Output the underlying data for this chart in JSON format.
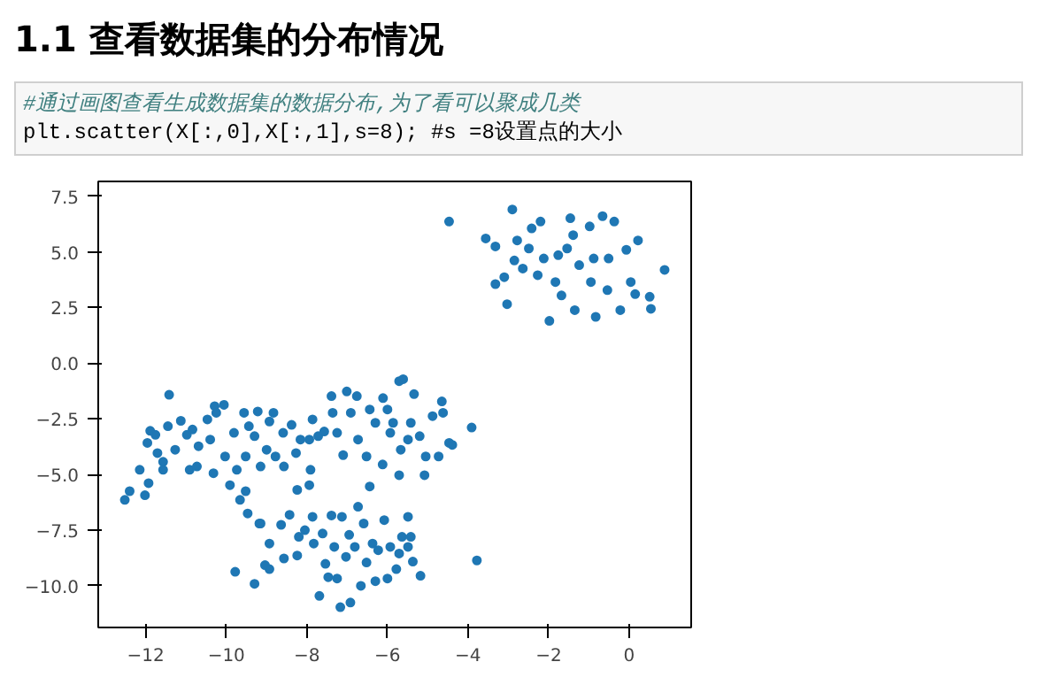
{
  "chart_data": {
    "type": "scatter",
    "title": "1.1  查看数据集的分布情况",
    "annotations": [
      "#通过画图查看生成数据集的数据分布,为了看可以聚成几类",
      "plt.scatter(X[:,0],X[:,1],s=8); #s =8设置点的大小"
    ],
    "x": [
      -4.47,
      -2.9,
      -3.56,
      -3.32,
      -2.78,
      -2.42,
      -2.2,
      -1.46,
      -0.98,
      -0.66,
      -0.37,
      0.22,
      0.88,
      0.51,
      0.54,
      0.15,
      -0.22,
      -0.83,
      -1.35,
      -1.98,
      -3.03,
      -3.32,
      -3.1,
      -2.85,
      -2.49,
      -2.12,
      -1.83,
      -1.68,
      -1.54,
      -1.24,
      -0.88,
      -0.51,
      -0.07,
      0.04,
      -0.54,
      -0.95,
      -2.27,
      -2.64,
      -1.39,
      -1.76,
      -12.52,
      -12.4,
      -12.02,
      -11.93,
      -12.15,
      -11.96,
      -11.89,
      -11.76,
      -11.71,
      -11.57,
      -11.57,
      -11.42,
      -11.45,
      -11.27,
      -11.13,
      -10.98,
      -10.91,
      -10.84,
      -10.69,
      -10.73,
      -10.47,
      -10.4,
      -10.29,
      -10.25,
      -10.06,
      -10.03,
      -10.32,
      -9.91,
      -9.81,
      -9.74,
      -9.66,
      -9.56,
      -9.52,
      -9.52,
      -9.47,
      -9.44,
      -9.3,
      -9.22,
      -9.15,
      -9.18,
      -9.0,
      -8.93,
      -8.83,
      -8.78,
      -8.59,
      -8.57,
      -8.38,
      -8.27,
      -8.24,
      -8.16,
      -7.94,
      -7.91,
      -7.94,
      -7.86,
      -7.72,
      -7.57,
      -7.39,
      -7.01,
      -6.76,
      -7.36,
      -7.25,
      -7.1,
      -6.91,
      -6.73,
      -6.52,
      -6.44,
      -6.44,
      -6.3,
      -6.12,
      -6.11,
      -6.0,
      -5.93,
      -5.86,
      -5.71,
      -5.61,
      -5.67,
      -5.71,
      -5.49,
      -5.34,
      -5.42,
      -5.2,
      -5.08,
      -5.05,
      -4.88,
      -4.65,
      -4.62,
      -4.73,
      -4.47,
      -4.39,
      -3.91,
      -3.78,
      -9.78,
      -9.3,
      -9.15,
      -9.04,
      -8.93,
      -8.93,
      -8.64,
      -8.57,
      -8.43,
      -8.2,
      -8.24,
      -8.05,
      -7.86,
      -7.83,
      -7.69,
      -7.61,
      -7.54,
      -7.47,
      -7.39,
      -7.32,
      -7.25,
      -7.17,
      -7.13,
      -7.03,
      -6.95,
      -6.92,
      -6.81,
      -6.73,
      -6.66,
      -6.59,
      -6.52,
      -6.37,
      -6.3,
      -6.23,
      -6.08,
      -6.0,
      -5.93,
      -5.78,
      -5.71,
      -5.64,
      -5.49,
      -5.49,
      -5.37,
      -5.18,
      -5.42
    ],
    "values": [
      6.36,
      6.9,
      5.6,
      5.24,
      5.51,
      6.05,
      6.36,
      6.51,
      6.14,
      6.6,
      6.36,
      5.51,
      4.19,
      2.98,
      2.44,
      3.1,
      2.38,
      2.08,
      2.38,
      1.9,
      2.65,
      3.55,
      3.86,
      4.61,
      5.15,
      4.7,
      3.64,
      3.04,
      5.15,
      4.4,
      4.7,
      4.7,
      5.09,
      3.64,
      3.28,
      3.64,
      3.95,
      4.25,
      5.75,
      4.85,
      -6.14,
      -5.75,
      -5.93,
      -5.39,
      -4.79,
      -3.58,
      -3.04,
      -3.22,
      -4.04,
      -4.43,
      -4.79,
      -1.42,
      -2.83,
      -3.89,
      -2.59,
      -3.22,
      -4.79,
      -2.98,
      -3.73,
      -4.64,
      -2.53,
      -3.43,
      -1.93,
      -2.23,
      -1.87,
      -4.19,
      -4.94,
      -5.48,
      -3.13,
      -4.79,
      -6.14,
      -2.23,
      -4.19,
      -5.75,
      -6.75,
      -2.83,
      -3.28,
      -2.17,
      -4.64,
      -7.2,
      -3.89,
      -2.62,
      -2.23,
      -4.19,
      -3.13,
      -4.64,
      -2.77,
      -4.04,
      -5.69,
      -3.43,
      -3.43,
      -4.79,
      -5.48,
      -2.53,
      -3.28,
      -3.07,
      -1.48,
      -1.27,
      -1.48,
      -2.23,
      -3.13,
      -4.13,
      -2.23,
      -3.43,
      -4.19,
      -5.54,
      -2.08,
      -2.68,
      -4.55,
      -1.57,
      -2.08,
      -3.13,
      -2.68,
      -0.81,
      -0.72,
      -3.89,
      -5.03,
      -3.43,
      -1.39,
      -2.68,
      -3.28,
      -5.03,
      -4.19,
      -2.38,
      -1.72,
      -2.23,
      -4.19,
      -3.58,
      -3.67,
      -2.89,
      -8.86,
      -9.37,
      -9.91,
      -7.2,
      -9.07,
      -9.25,
      -8.1,
      -7.26,
      -8.77,
      -6.81,
      -7.8,
      -8.64,
      -7.5,
      -6.9,
      -8.1,
      -10.45,
      -7.65,
      -9.01,
      -9.61,
      -6.84,
      -8.25,
      -9.67,
      -10.96,
      -6.9,
      -8.7,
      -7.71,
      -10.75,
      -8.25,
      -6.45,
      -10.0,
      -7.2,
      -8.95,
      -8.1,
      -9.79,
      -8.4,
      -7.05,
      -9.67,
      -8.25,
      -9.25,
      -8.55,
      -7.8,
      -6.9,
      -8.25,
      -8.91,
      -9.55,
      -7.8
    ],
    "color": "#1f77b4",
    "marker": "circle",
    "xlim": [
      -13.18,
      1.54
    ],
    "ylim": [
      -11.87,
      8.16
    ],
    "xticks": [
      {
        "value": -12,
        "label": "−12"
      },
      {
        "value": -10,
        "label": "−10"
      },
      {
        "value": -8,
        "label": "−8"
      },
      {
        "value": -6,
        "label": "−6"
      },
      {
        "value": -4,
        "label": "−4"
      },
      {
        "value": -2,
        "label": "−2"
      },
      0
    ],
    "yticks": [
      7.5,
      {
        "value": 5,
        "label": "5.0"
      },
      2.5,
      {
        "value": 0,
        "label": "0.0"
      },
      {
        "value": -2.5,
        "label": "−2.5"
      },
      {
        "value": -5,
        "label": "−5.0"
      },
      {
        "value": -7.5,
        "label": "−7.5"
      },
      {
        "value": -10,
        "label": "−10.0"
      }
    ],
    "grid": false
  }
}
